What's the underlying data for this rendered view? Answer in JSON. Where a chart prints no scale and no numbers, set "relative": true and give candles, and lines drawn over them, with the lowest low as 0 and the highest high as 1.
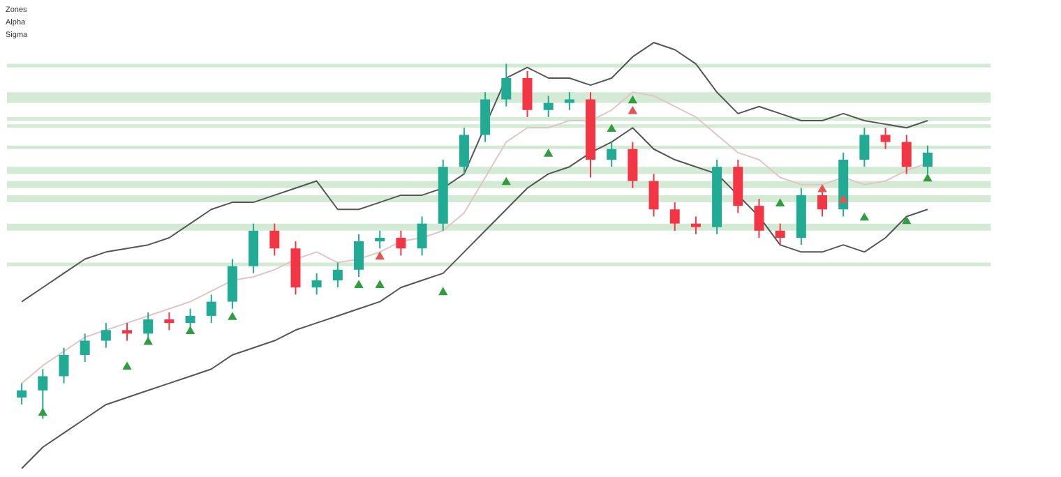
{
  "chart_data": {
    "type": "candlestick",
    "relative": true,
    "annotations": [
      "Zones",
      "Alpha",
      "Sigma"
    ],
    "categories": [
      null,
      null,
      null,
      null,
      null,
      null,
      null,
      null,
      null,
      null,
      null,
      null,
      null,
      null,
      null,
      null,
      null,
      null,
      null,
      null,
      null,
      null,
      null,
      null,
      null,
      null,
      null,
      null,
      null,
      null,
      null,
      null,
      null,
      null,
      null,
      null,
      null,
      null,
      null,
      null,
      null,
      null,
      null,
      null
    ],
    "ohlc": [
      [
        0.06,
        0.1,
        0.04,
        0.08
      ],
      [
        0.08,
        0.14,
        0,
        0.12
      ],
      [
        0.12,
        0.2,
        0.1,
        0.18
      ],
      [
        0.18,
        0.24,
        0.16,
        0.22
      ],
      [
        0.22,
        0.27,
        0.2,
        0.25
      ],
      [
        0.25,
        0.27,
        0.22,
        0.24
      ],
      [
        0.24,
        0.3,
        0.22,
        0.28
      ],
      [
        0.28,
        0.3,
        0.25,
        0.27
      ],
      [
        0.27,
        0.31,
        0.25,
        0.29
      ],
      [
        0.29,
        0.35,
        0.27,
        0.33
      ],
      [
        0.33,
        0.45,
        0.31,
        0.43
      ],
      [
        0.43,
        0.55,
        0.41,
        0.53
      ],
      [
        0.53,
        0.55,
        0.46,
        0.48
      ],
      [
        0.48,
        0.5,
        0.35,
        0.37
      ],
      [
        0.37,
        0.41,
        0.35,
        0.39
      ],
      [
        0.39,
        0.44,
        0.37,
        0.42
      ],
      [
        0.42,
        0.52,
        0.4,
        0.5
      ],
      [
        0.5,
        0.53,
        0.48,
        0.51
      ],
      [
        0.51,
        0.53,
        0.46,
        0.48
      ],
      [
        0.48,
        0.57,
        0.46,
        0.55
      ],
      [
        0.55,
        0.73,
        0.53,
        0.71
      ],
      [
        0.71,
        0.82,
        0.69,
        0.8
      ],
      [
        0.8,
        0.92,
        0.78,
        0.9
      ],
      [
        0.9,
        1,
        0.88,
        0.96
      ],
      [
        0.96,
        0.98,
        0.85,
        0.87
      ],
      [
        0.87,
        0.91,
        0.85,
        0.89
      ],
      [
        0.89,
        0.92,
        0.87,
        0.9
      ],
      [
        0.9,
        0.92,
        0.68,
        0.73
      ],
      [
        0.73,
        0.78,
        0.71,
        0.76
      ],
      [
        0.76,
        0.78,
        0.65,
        0.67
      ],
      [
        0.67,
        0.69,
        0.57,
        0.59
      ],
      [
        0.59,
        0.61,
        0.53,
        0.55
      ],
      [
        0.55,
        0.57,
        0.52,
        0.54
      ],
      [
        0.54,
        0.73,
        0.52,
        0.71
      ],
      [
        0.71,
        0.73,
        0.58,
        0.6
      ],
      [
        0.6,
        0.62,
        0.51,
        0.53
      ],
      [
        0.53,
        0.55,
        0.49,
        0.51
      ],
      [
        0.51,
        0.65,
        0.49,
        0.63
      ],
      [
        0.63,
        0.65,
        0.57,
        0.59
      ],
      [
        0.59,
        0.75,
        0.57,
        0.73
      ],
      [
        0.73,
        0.82,
        0.71,
        0.8
      ],
      [
        0.8,
        0.82,
        0.76,
        0.78
      ],
      [
        0.78,
        0.8,
        0.69,
        0.71
      ],
      [
        0.71,
        0.77,
        0.69,
        0.75
      ]
    ],
    "colors": [
      "#22ab94",
      "#22ab94",
      "#22ab94",
      "#22ab94",
      "#22ab94",
      "#f23645",
      "#22ab94",
      "#f23645",
      "#22ab94",
      "#22ab94",
      "#22ab94",
      "#22ab94",
      "#f23645",
      "#f23645",
      "#22ab94",
      "#22ab94",
      "#22ab94",
      "#22ab94",
      "#f23645",
      "#22ab94",
      "#22ab94",
      "#22ab94",
      "#22ab94",
      "#22ab94",
      "#f23645",
      "#22ab94",
      "#22ab94",
      "#f23645",
      "#22ab94",
      "#f23645",
      "#f23645",
      "#f23645",
      "#f23645",
      "#22ab94",
      "#f23645",
      "#f23645",
      "#f23645",
      "#22ab94",
      "#f23645",
      "#22ab94",
      "#22ab94",
      "#f23645",
      "#f23645",
      "#22ab94"
    ],
    "bands": [
      {
        "axis": "y",
        "from": 0.99,
        "to": 1.0,
        "color": "#c8e6c9"
      },
      {
        "axis": "y",
        "from": 0.89,
        "to": 0.92,
        "color": "#c8e6c9"
      },
      {
        "axis": "y",
        "from": 0.84,
        "to": 0.85,
        "color": "#c8e6c9"
      },
      {
        "axis": "y",
        "from": 0.82,
        "to": 0.83,
        "color": "#c8e6c9"
      },
      {
        "axis": "y",
        "from": 0.76,
        "to": 0.77,
        "color": "#c8e6c9"
      },
      {
        "axis": "y",
        "from": 0.69,
        "to": 0.71,
        "color": "#c8e6c9"
      },
      {
        "axis": "y",
        "from": 0.65,
        "to": 0.67,
        "color": "#c8e6c9"
      },
      {
        "axis": "y",
        "from": 0.61,
        "to": 0.63,
        "color": "#c8e6c9"
      },
      {
        "axis": "y",
        "from": 0.53,
        "to": 0.55,
        "color": "#c8e6c9"
      },
      {
        "axis": "y",
        "from": 0.43,
        "to": 0.44,
        "color": "#c8e6c9"
      }
    ],
    "series": [
      {
        "type": "line",
        "color": "#555555",
        "line_style": "solid",
        "values": [
          0.33,
          0.37,
          0.41,
          0.45,
          0.47,
          0.48,
          0.49,
          0.51,
          0.55,
          0.59,
          0.61,
          0.61,
          0.63,
          0.65,
          0.67,
          0.59,
          0.59,
          0.61,
          0.63,
          0.63,
          0.65,
          0.69,
          null,
          0.96,
          0.99,
          0.96,
          0.96,
          0.94,
          0.96,
          1.02,
          1.06,
          1.04,
          1.0,
          0.92,
          0.86,
          0.88,
          0.86,
          0.84,
          0.84,
          0.86,
          0.84,
          0.83,
          0.82,
          0.84
        ]
      },
      {
        "type": "line",
        "color": "#e3c4c4",
        "line_style": "solid",
        "values": [
          0.1,
          0.15,
          0.19,
          0.23,
          0.25,
          0.27,
          0.29,
          0.31,
          0.33,
          0.36,
          0.39,
          0.4,
          0.42,
          0.45,
          0.47,
          0.44,
          0.45,
          0.47,
          0.5,
          0.51,
          0.53,
          0.58,
          0.68,
          0.78,
          0.82,
          0.82,
          0.84,
          0.84,
          0.87,
          0.92,
          0.91,
          0.88,
          0.85,
          0.8,
          0.75,
          0.73,
          0.68,
          0.66,
          0.66,
          0.68,
          0.66,
          0.67,
          0.7,
          0.72
        ]
      },
      {
        "type": "line",
        "color": "#555555",
        "line_style": "solid",
        "values": [
          -0.14,
          -0.08,
          -0.04,
          0,
          0.04,
          0.06,
          0.08,
          0.1,
          0.12,
          0.14,
          0.18,
          0.2,
          0.22,
          0.25,
          0.27,
          0.29,
          0.31,
          0.33,
          0.37,
          0.39,
          0.41,
          0.47,
          0.53,
          0.59,
          0.65,
          0.69,
          0.71,
          0.75,
          0.78,
          0.82,
          0.76,
          0.73,
          0.71,
          0.69,
          0.63,
          0.57,
          0.49,
          0.47,
          0.47,
          0.49,
          0.47,
          0.51,
          0.57,
          0.59
        ]
      },
      {
        "type": "scatter",
        "color": "#2e9e3e",
        "marker": "triangle",
        "values": [
          null,
          0.02,
          null,
          null,
          null,
          0.15,
          0.22,
          null,
          0.25,
          null,
          0.29,
          null,
          null,
          null,
          null,
          null,
          0.38,
          0.38,
          null,
          null,
          0.36,
          null,
          null,
          0.67,
          null,
          0.75,
          null,
          null,
          0.82,
          0.9,
          null,
          null,
          null,
          null,
          null,
          null,
          0.61,
          null,
          null,
          null,
          0.57,
          null,
          0.56,
          0.68
        ]
      },
      {
        "type": "scatter",
        "color": "#e8534f",
        "marker": "triangle",
        "values": [
          null,
          null,
          null,
          null,
          null,
          null,
          null,
          null,
          null,
          null,
          null,
          null,
          null,
          null,
          null,
          null,
          null,
          0.46,
          null,
          null,
          null,
          null,
          null,
          null,
          null,
          null,
          null,
          null,
          null,
          0.87,
          null,
          null,
          null,
          null,
          null,
          null,
          null,
          null,
          0.65,
          0.62,
          null,
          null,
          null,
          null
        ]
      }
    ]
  }
}
